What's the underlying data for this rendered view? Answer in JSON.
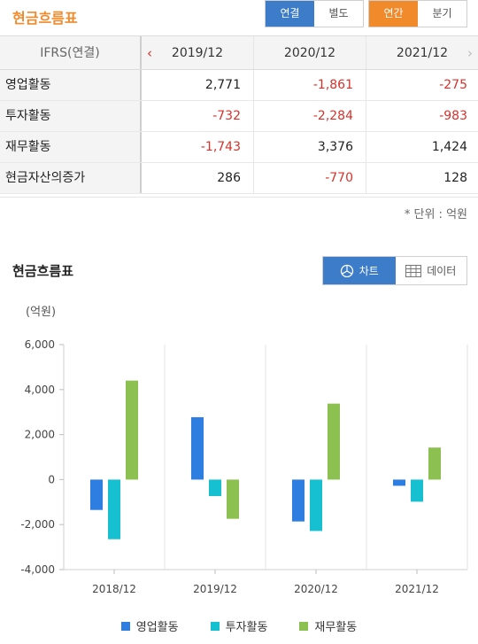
{
  "header": {
    "title": "현금흐름표",
    "scope_tabs": [
      {
        "label": "연결",
        "active": true
      },
      {
        "label": "별도",
        "active": false
      }
    ],
    "period_tabs": [
      {
        "label": "연간",
        "active": true
      },
      {
        "label": "분기",
        "active": false
      }
    ]
  },
  "table": {
    "corner_label": "IFRS(연결)",
    "columns": [
      "2019/12",
      "2020/12",
      "2021/12"
    ],
    "rows": [
      {
        "label": "영업활동",
        "values": [
          "2,771",
          "-1,861",
          "-275"
        ]
      },
      {
        "label": "투자활동",
        "values": [
          "-732",
          "-2,284",
          "-983"
        ]
      },
      {
        "label": "재무활동",
        "values": [
          "-1,743",
          "3,376",
          "1,424"
        ]
      },
      {
        "label": "현금자산의증가",
        "values": [
          "286",
          "-770",
          "128"
        ]
      }
    ],
    "unit_note": "* 단위 : 억원"
  },
  "chart_section": {
    "title": "현금흐름표",
    "view_tabs": [
      {
        "label": "차트",
        "icon": "pie-chart-icon",
        "active": true
      },
      {
        "label": "데이터",
        "icon": "table-grid-icon",
        "active": false
      }
    ]
  },
  "colors": {
    "orange": "#f08a2b",
    "blue": "#3d7cc9",
    "negative": "#d6322b",
    "series1": "#2e7de1",
    "series2": "#17c0d0",
    "series3": "#8cc152"
  },
  "chart_data": {
    "type": "bar",
    "title": "",
    "ylabel": "(억원)",
    "xlabel": "",
    "categories": [
      "2018/12",
      "2019/12",
      "2020/12",
      "2021/12"
    ],
    "series": [
      {
        "name": "영업활동",
        "color": "#2e7de1",
        "values": [
          -1350,
          2771,
          -1861,
          -275
        ]
      },
      {
        "name": "투자활동",
        "color": "#17c0d0",
        "values": [
          -2650,
          -732,
          -2284,
          -983
        ]
      },
      {
        "name": "재무활동",
        "color": "#8cc152",
        "values": [
          4400,
          -1743,
          3376,
          1424
        ]
      }
    ],
    "ylim": [
      -4000,
      6000
    ],
    "yticks": [
      "6,000",
      "4,000",
      "2,000",
      "0",
      "-2,000",
      "-4,000"
    ],
    "ytick_values": [
      6000,
      4000,
      2000,
      0,
      -2000,
      -4000
    ],
    "grid": "vertical",
    "legend": "bottom"
  }
}
